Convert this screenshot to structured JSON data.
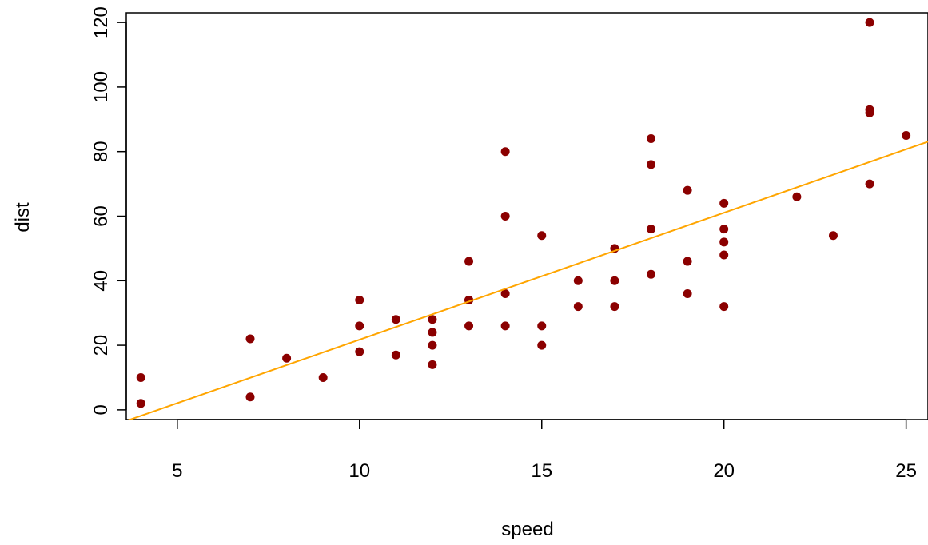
{
  "chart_data": {
    "type": "scatter",
    "title": "",
    "xlabel": "speed",
    "ylabel": "dist",
    "xlim": [
      3.6,
      25.6
    ],
    "ylim": [
      -3,
      123
    ],
    "xticks": [
      5,
      10,
      15,
      20,
      25
    ],
    "yticks": [
      0,
      20,
      40,
      60,
      80,
      100,
      120
    ],
    "grid": false,
    "legend": "none",
    "series": [
      {
        "color": "#8b0000",
        "points": [
          [
            4,
            2
          ],
          [
            4,
            10
          ],
          [
            7,
            4
          ],
          [
            7,
            22
          ],
          [
            8,
            16
          ],
          [
            9,
            10
          ],
          [
            10,
            18
          ],
          [
            10,
            26
          ],
          [
            10,
            34
          ],
          [
            11,
            17
          ],
          [
            11,
            28
          ],
          [
            12,
            14
          ],
          [
            12,
            20
          ],
          [
            12,
            24
          ],
          [
            12,
            28
          ],
          [
            13,
            26
          ],
          [
            13,
            34
          ],
          [
            13,
            34
          ],
          [
            13,
            46
          ],
          [
            14,
            26
          ],
          [
            14,
            36
          ],
          [
            14,
            60
          ],
          [
            14,
            80
          ],
          [
            15,
            20
          ],
          [
            15,
            26
          ],
          [
            15,
            54
          ],
          [
            16,
            32
          ],
          [
            16,
            40
          ],
          [
            17,
            32
          ],
          [
            17,
            40
          ],
          [
            17,
            50
          ],
          [
            18,
            42
          ],
          [
            18,
            56
          ],
          [
            18,
            76
          ],
          [
            18,
            84
          ],
          [
            19,
            36
          ],
          [
            19,
            46
          ],
          [
            19,
            68
          ],
          [
            20,
            32
          ],
          [
            20,
            48
          ],
          [
            20,
            52
          ],
          [
            20,
            56
          ],
          [
            20,
            64
          ],
          [
            22,
            66
          ],
          [
            23,
            54
          ],
          [
            24,
            70
          ],
          [
            24,
            92
          ],
          [
            24,
            93
          ],
          [
            24,
            120
          ],
          [
            25,
            85
          ]
        ]
      }
    ],
    "regression_line": {
      "color": "#ffa500",
      "intercept": -17.579,
      "slope": 3.932
    }
  }
}
